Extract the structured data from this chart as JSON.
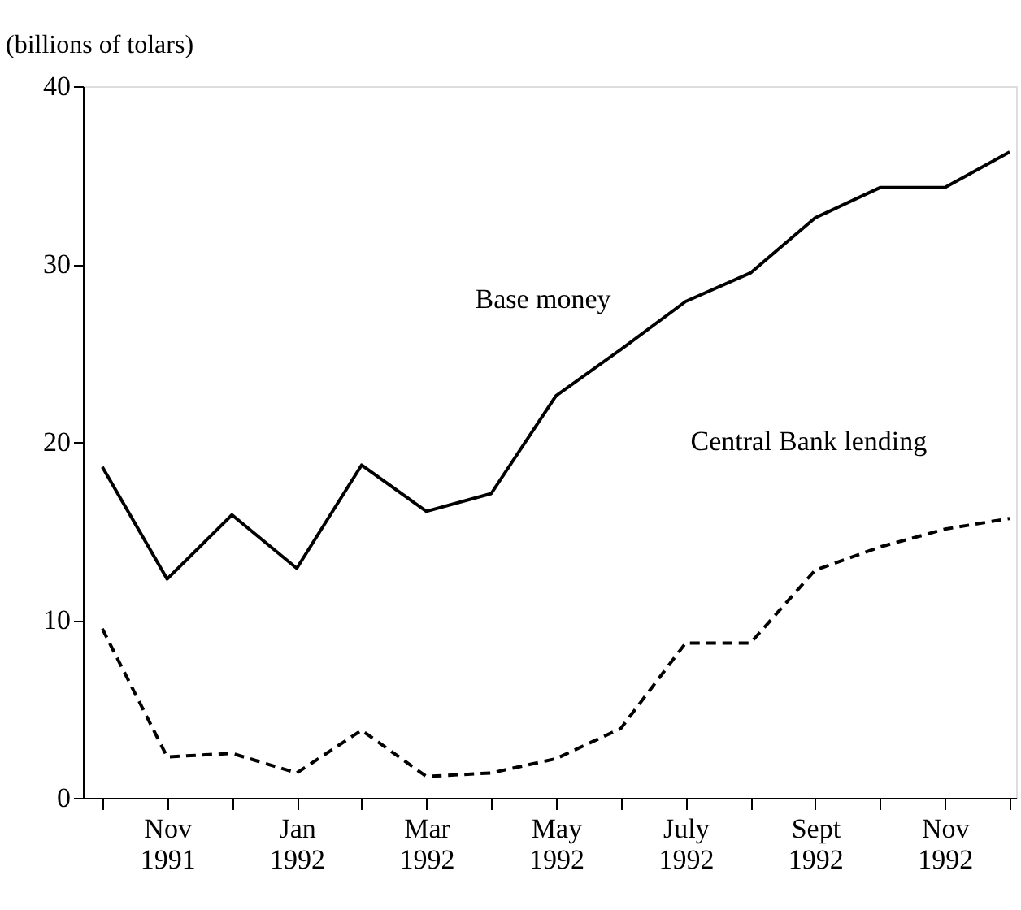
{
  "chart_data": {
    "type": "line",
    "ylabel": "(billions of tolars)",
    "categories": [
      null,
      "Nov 1991",
      null,
      "Jan 1992",
      null,
      "Mar 1992",
      null,
      "May 1992",
      null,
      "July 1992",
      null,
      "Sept 1992",
      null,
      "Nov 1992",
      null
    ],
    "series": [
      {
        "name": "Base money",
        "color": "#000000",
        "line_style": "solid",
        "values": [
          18.6,
          12.3,
          15.9,
          12.9,
          18.7,
          16.1,
          17.1,
          22.6,
          25.2,
          27.9,
          29.5,
          32.6,
          34.3,
          34.3,
          36.3
        ]
      },
      {
        "name": "Central Bank lending",
        "color": "#000000",
        "line_style": "dashed",
        "values": [
          9.5,
          2.3,
          2.5,
          1.4,
          3.8,
          1.2,
          1.4,
          2.2,
          3.9,
          8.7,
          8.7,
          12.8,
          14.1,
          15.1,
          15.7
        ]
      }
    ],
    "ylim": [
      0,
      40
    ],
    "yticks": [
      0,
      10,
      20,
      30,
      40
    ]
  }
}
